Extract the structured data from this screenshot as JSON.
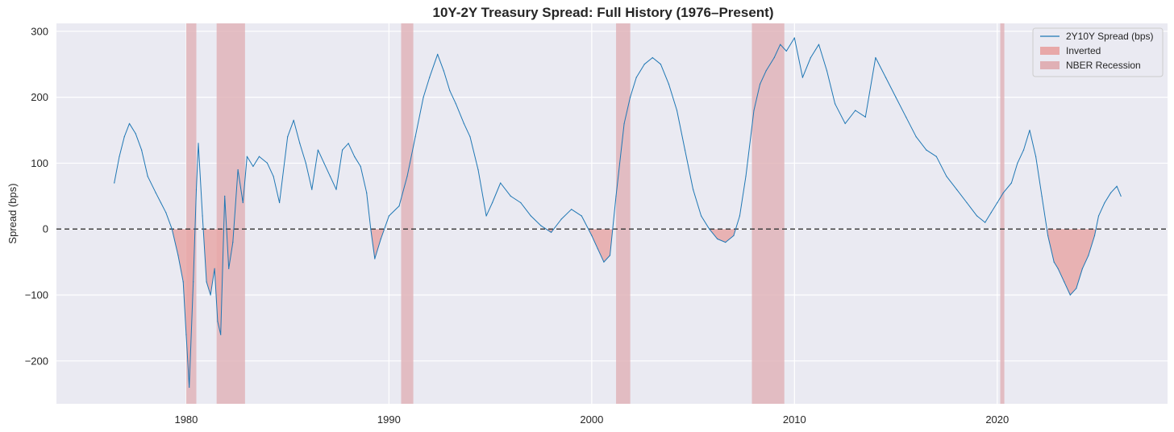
{
  "chart_data": {
    "type": "line",
    "title": "10Y-2Y Treasury Spread: Full History (1976–Present)",
    "xlabel": "",
    "ylabel": "Spread (bps)",
    "xlim": [
      1973.6,
      2028.4
    ],
    "ylim": [
      -265,
      312
    ],
    "x_ticks": [
      1980,
      1990,
      2000,
      2010,
      2020
    ],
    "y_ticks": [
      -200,
      -100,
      0,
      100,
      200,
      300
    ],
    "y_tick_labels": [
      "−200",
      "−100",
      "0",
      "100",
      "200",
      "300"
    ],
    "grid": true,
    "legend_position": "top-right",
    "reference_line": {
      "y": 0,
      "style": "dashed",
      "color": "#333333"
    },
    "series": [
      {
        "name": "2Y10Y Spread (bps)",
        "color": "#1f77b4",
        "x": [
          1976.45,
          1976.7,
          1976.95,
          1977.2,
          1977.5,
          1977.8,
          1978.1,
          1978.5,
          1978.75,
          1979.0,
          1979.3,
          1979.6,
          1979.85,
          1980.0,
          1980.15,
          1980.35,
          1980.5,
          1980.6,
          1980.8,
          1981.0,
          1981.2,
          1981.4,
          1981.55,
          1981.7,
          1981.9,
          1982.1,
          1982.3,
          1982.55,
          1982.8,
          1983.0,
          1983.3,
          1983.6,
          1984.0,
          1984.3,
          1984.6,
          1985.0,
          1985.3,
          1985.6,
          1985.9,
          1986.2,
          1986.5,
          1986.8,
          1987.1,
          1987.4,
          1987.7,
          1988.0,
          1988.3,
          1988.6,
          1988.9,
          1989.1,
          1989.3,
          1989.6,
          1990.0,
          1990.5,
          1990.9,
          1991.3,
          1991.7,
          1992.0,
          1992.4,
          1992.7,
          1993.0,
          1993.3,
          1993.7,
          1994.0,
          1994.4,
          1994.8,
          1995.1,
          1995.5,
          1996.0,
          1996.5,
          1997.0,
          1997.5,
          1998.0,
          1998.5,
          1999.0,
          1999.5,
          2000.0,
          2000.3,
          2000.6,
          2000.9,
          2001.2,
          2001.6,
          2001.9,
          2002.2,
          2002.6,
          2003.0,
          2003.4,
          2003.8,
          2004.2,
          2004.6,
          2005.0,
          2005.4,
          2005.8,
          2006.2,
          2006.6,
          2007.0,
          2007.3,
          2007.6,
          2008.0,
          2008.3,
          2008.6,
          2009.0,
          2009.3,
          2009.6,
          2010.0,
          2010.4,
          2010.8,
          2011.2,
          2011.6,
          2012.0,
          2012.5,
          2013.0,
          2013.5,
          2014.0,
          2014.5,
          2015.0,
          2015.5,
          2016.0,
          2016.5,
          2017.0,
          2017.5,
          2018.0,
          2018.5,
          2019.0,
          2019.4,
          2019.7,
          2020.0,
          2020.3,
          2020.7,
          2021.0,
          2021.3,
          2021.6,
          2021.9,
          2022.2,
          2022.5,
          2022.8,
          2023.0,
          2023.3,
          2023.6,
          2023.9,
          2024.2,
          2024.5,
          2024.8,
          2025.0,
          2025.3,
          2025.6,
          2025.9,
          2026.1
        ],
        "values": [
          70,
          110,
          140,
          160,
          145,
          120,
          80,
          55,
          40,
          25,
          0,
          -40,
          -80,
          -160,
          -240,
          -80,
          60,
          130,
          20,
          -80,
          -100,
          -60,
          -140,
          -160,
          50,
          -60,
          -20,
          90,
          40,
          110,
          95,
          110,
          100,
          80,
          40,
          140,
          165,
          130,
          100,
          60,
          120,
          100,
          80,
          60,
          120,
          130,
          110,
          95,
          55,
          0,
          -45,
          -15,
          20,
          35,
          80,
          140,
          200,
          230,
          265,
          240,
          210,
          190,
          160,
          140,
          90,
          20,
          40,
          70,
          50,
          40,
          20,
          5,
          -5,
          15,
          30,
          20,
          -10,
          -30,
          -50,
          -40,
          50,
          160,
          200,
          230,
          250,
          260,
          250,
          220,
          180,
          120,
          60,
          20,
          0,
          -15,
          -20,
          -10,
          20,
          80,
          180,
          220,
          240,
          260,
          280,
          270,
          290,
          230,
          260,
          280,
          240,
          190,
          160,
          180,
          170,
          260,
          230,
          200,
          170,
          140,
          120,
          110,
          80,
          60,
          40,
          20,
          10,
          25,
          40,
          55,
          70,
          100,
          120,
          150,
          110,
          50,
          -10,
          -50,
          -60,
          -80,
          -100,
          -90,
          -60,
          -40,
          -10,
          20,
          40,
          55,
          65,
          50
        ]
      }
    ],
    "shaded_regions": [
      {
        "name": "Inverted",
        "color": "#e8a8a8",
        "description": "area between spread line and zero where spread < 0"
      },
      {
        "name": "NBER Recession",
        "color": "#e0b0b5",
        "spans": [
          [
            1980.0,
            1980.5
          ],
          [
            1981.5,
            1982.9
          ],
          [
            1990.6,
            1991.2
          ],
          [
            2001.2,
            2001.9
          ],
          [
            2007.9,
            2009.5
          ],
          [
            2020.15,
            2020.35
          ]
        ]
      }
    ],
    "legend": [
      "2Y10Y Spread (bps)",
      "Inverted",
      "NBER Recession"
    ]
  }
}
